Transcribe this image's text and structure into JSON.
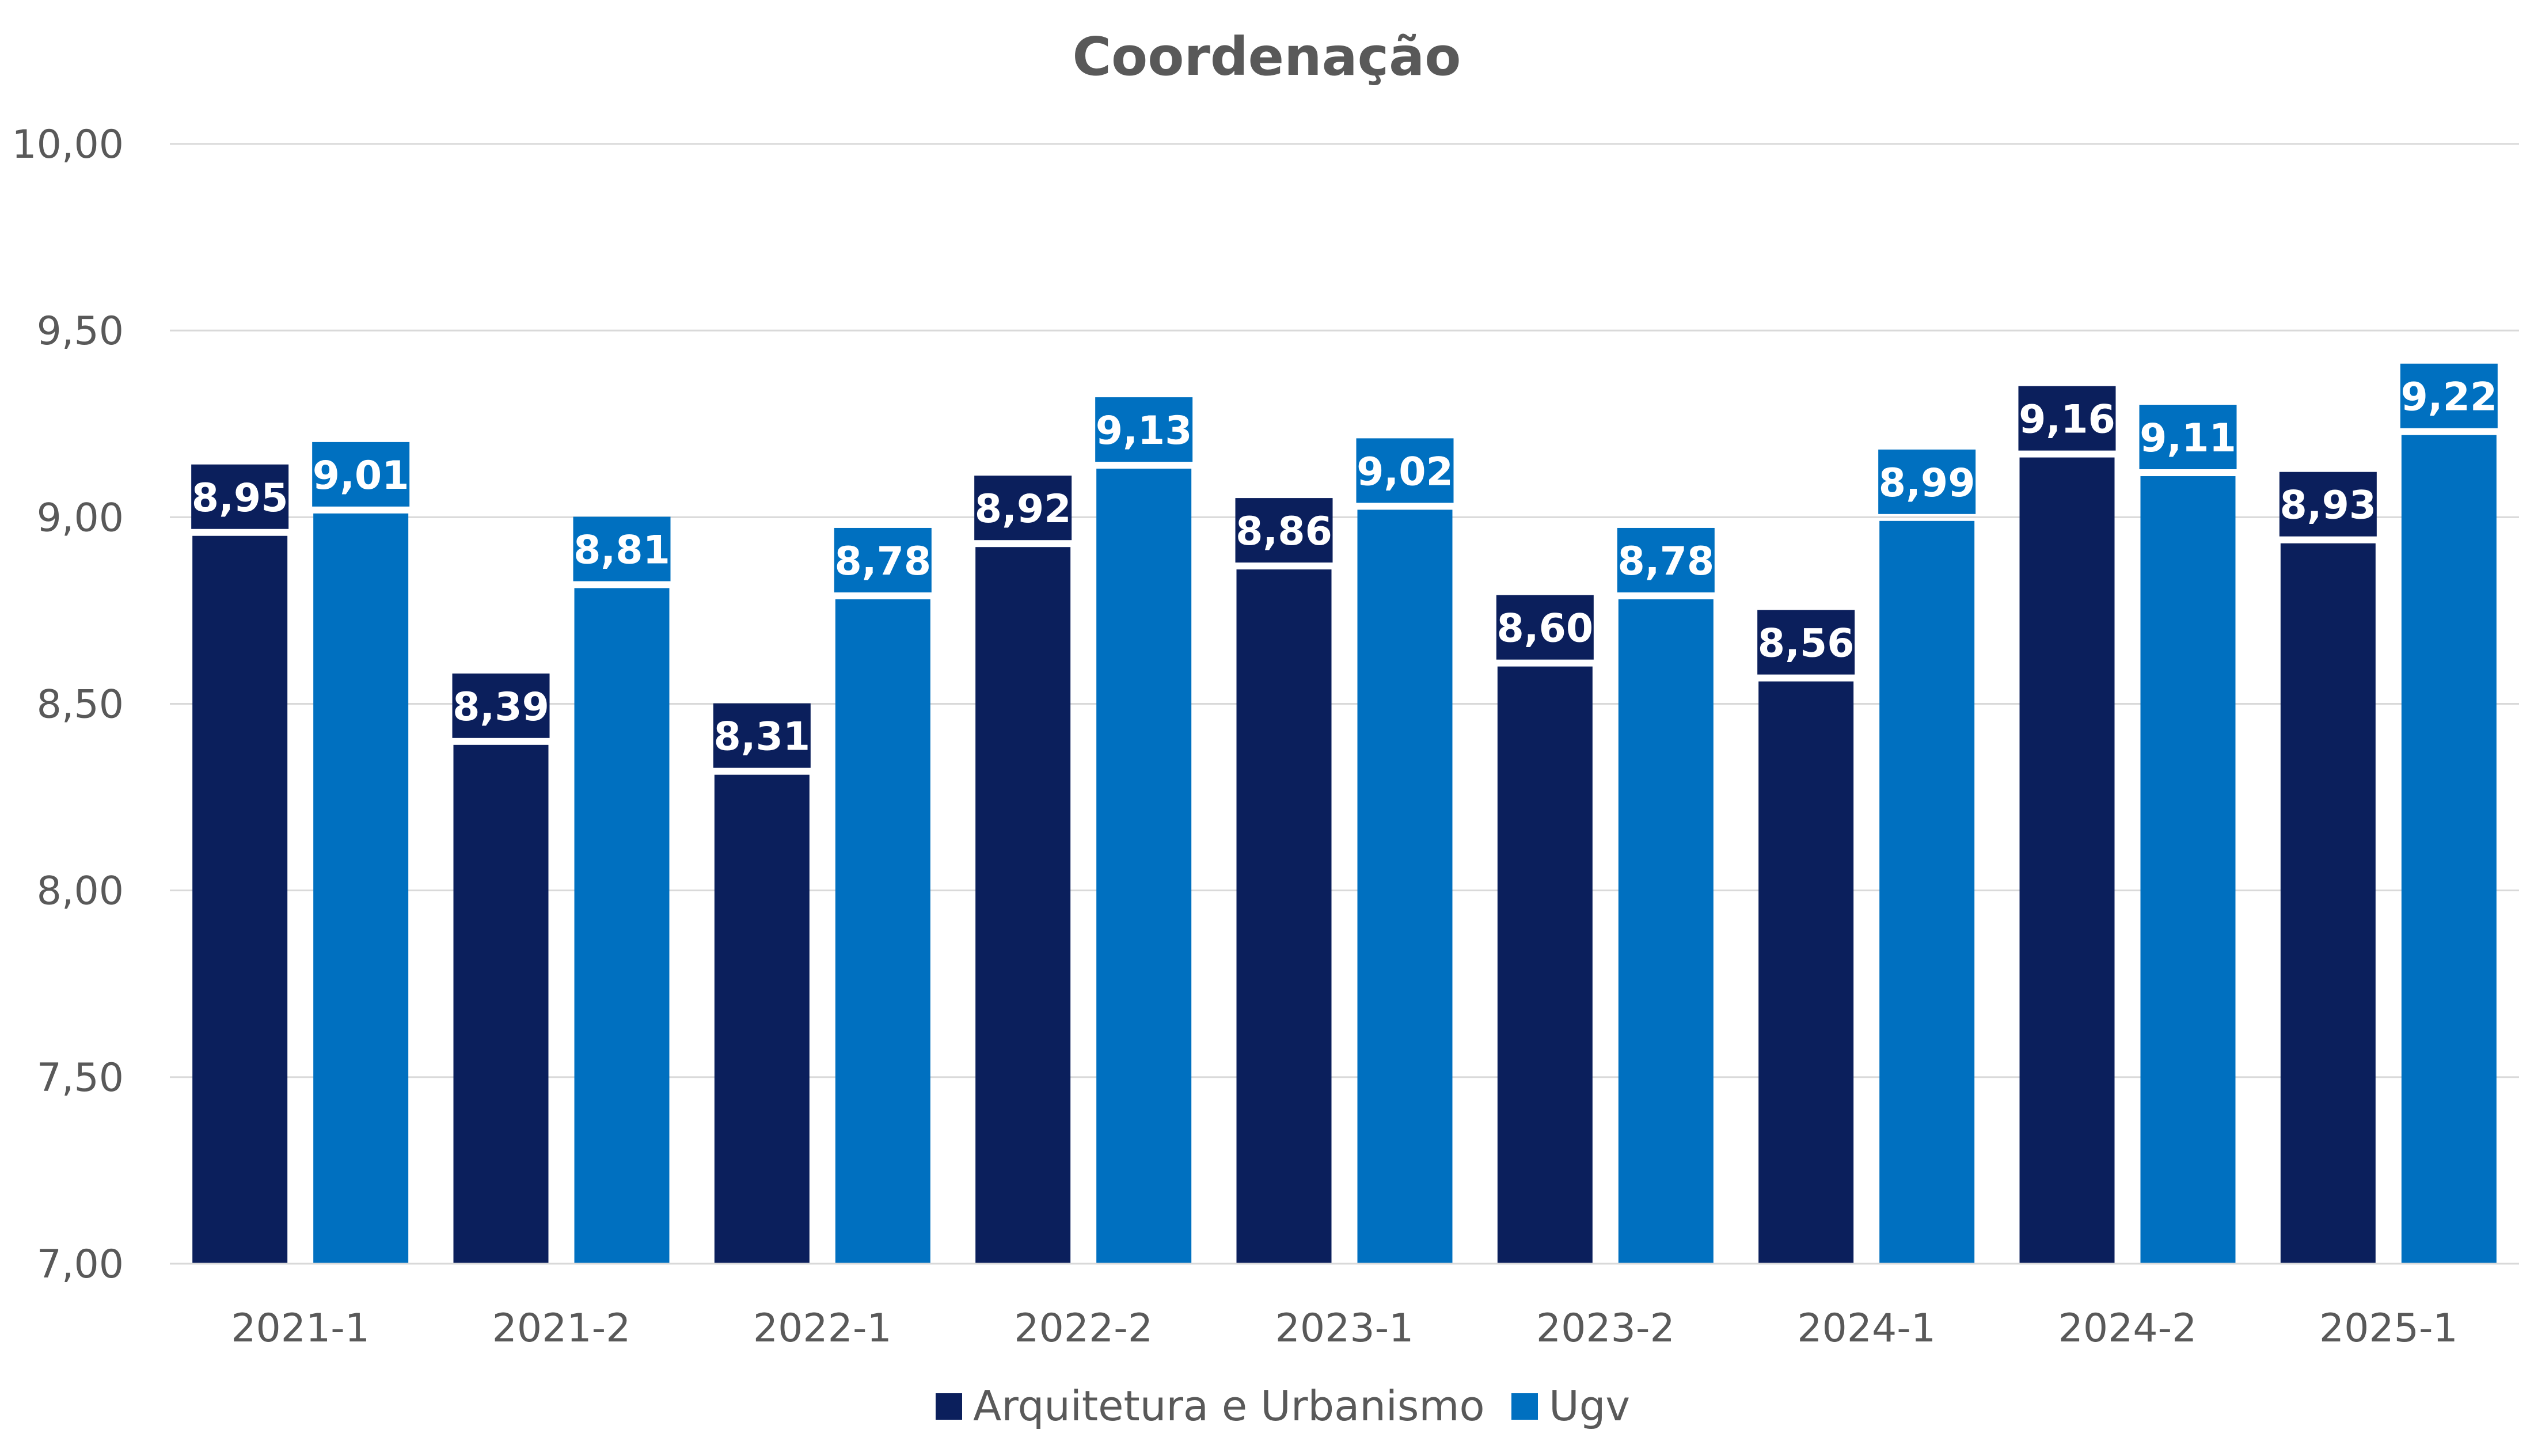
{
  "chart_data": {
    "type": "bar",
    "title": "Coordenação",
    "categories": [
      "2021-1",
      "2021-2",
      "2022-1",
      "2022-2",
      "2023-1",
      "2023-2",
      "2024-1",
      "2024-2",
      "2025-1"
    ],
    "series": [
      {
        "name": "Arquitetura e Urbanismo",
        "color": "#0b1f5c",
        "values": [
          8.95,
          8.39,
          8.31,
          8.92,
          8.86,
          8.6,
          8.56,
          9.16,
          8.93
        ],
        "labels": [
          "8,95",
          "8,39",
          "8,31",
          "8,92",
          "8,86",
          "8,60",
          "8,56",
          "9,16",
          "8,93"
        ]
      },
      {
        "name": "Ugv",
        "color": "#0070c0",
        "values": [
          9.01,
          8.81,
          8.78,
          9.13,
          9.02,
          8.78,
          8.99,
          9.11,
          9.22
        ],
        "labels": [
          "9,01",
          "8,81",
          "8,78",
          "9,13",
          "9,02",
          "8,78",
          "8,99",
          "9,11",
          "9,22"
        ]
      }
    ],
    "ylim": [
      7.0,
      10.0
    ],
    "yticks": [
      7.0,
      7.5,
      8.0,
      8.5,
      9.0,
      9.5,
      10.0
    ],
    "ytick_labels": [
      "7,00",
      "7,50",
      "8,00",
      "8,50",
      "9,00",
      "9,50",
      "10,00"
    ],
    "grid": true,
    "legend_position": "bottom"
  }
}
